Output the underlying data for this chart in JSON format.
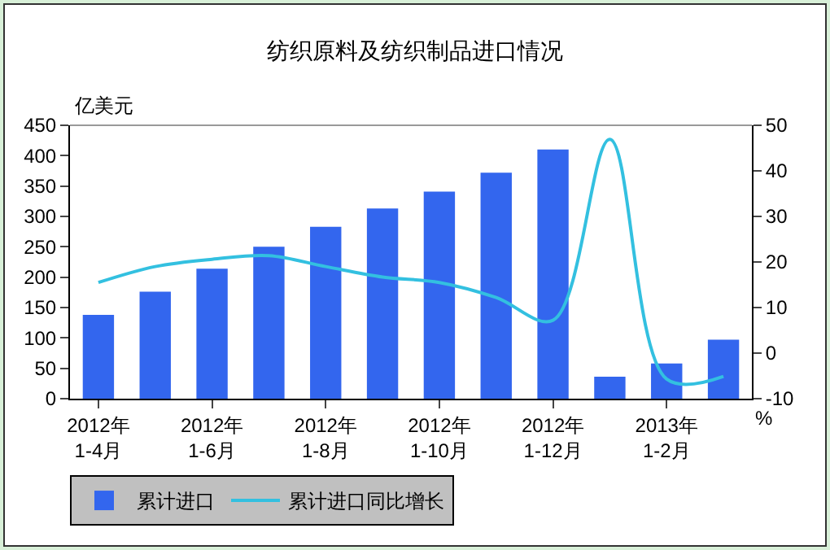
{
  "chart_data": {
    "type": "bar",
    "title": "纺织原料及纺织制品进口情况",
    "ylabel": "亿美元",
    "y2label": "%",
    "categories": [
      "2012年\n1-4月",
      null,
      "2012年\n1-6月",
      null,
      "2012年\n1-8月",
      null,
      "2012年\n1-10月",
      null,
      "2012年\n1-12月",
      null,
      "2013年\n1-2月",
      null
    ],
    "series": [
      {
        "name": "累计进口",
        "color": "#3366ee",
        "values": [
          138,
          176,
          214,
          250,
          283,
          313,
          341,
          372,
          410,
          36,
          58,
          97
        ]
      },
      {
        "name": "累计进口同比增长",
        "type": "line",
        "axis": "y2",
        "color": "#33c0e0",
        "values": [
          15.5,
          19,
          20.6,
          21.4,
          19,
          16.7,
          15.5,
          12.2,
          7.2,
          46.9,
          -5.7,
          -5.1
        ]
      }
    ],
    "ylim": [
      0,
      450
    ],
    "yticks": [
      0,
      50,
      100,
      150,
      200,
      250,
      300,
      350,
      400,
      450
    ],
    "y2lim": [
      -10,
      50
    ],
    "y2ticks": [
      -10,
      0,
      10,
      20,
      30,
      40,
      50
    ],
    "grid": false,
    "legend": "bottom left",
    "marker": "none",
    "line_style": "solid"
  }
}
